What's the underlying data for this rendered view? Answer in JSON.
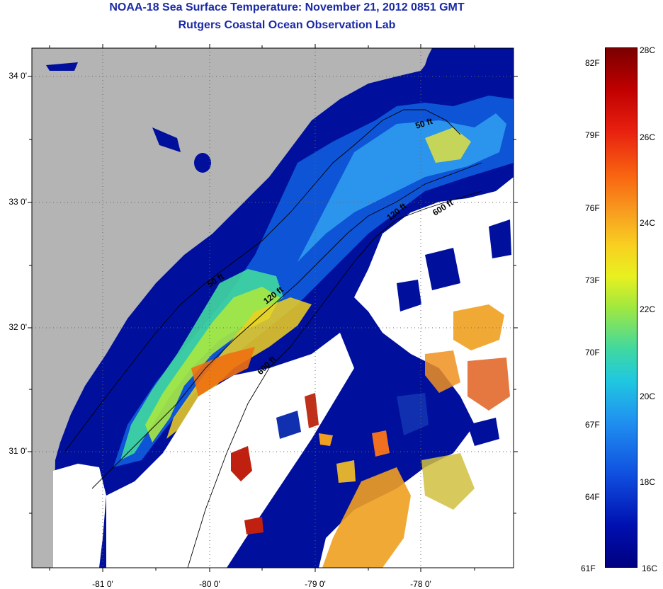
{
  "title": "NOAA-18 Sea Surface Temperature:  November 21, 2012 0851 GMT",
  "subtitle": "Rutgers Coastal Ocean Observation Lab",
  "map": {
    "lat_labels": [
      "34 0'",
      "33 0'",
      "32 0'",
      "31 0'"
    ],
    "lon_labels": [
      "-81 0'",
      "-80 0'",
      "-79 0'",
      "-78 0'"
    ],
    "contours": [
      {
        "label": "50 ft"
      },
      {
        "label": "50 ft"
      },
      {
        "label": "120 ft"
      },
      {
        "label": "120 ft"
      },
      {
        "label": "600 ft"
      },
      {
        "label": "600 ft"
      }
    ],
    "colors": {
      "land": "#b4b4b4",
      "cloud": "#ffffff",
      "cold": "#00109c",
      "warm": "#8a0000"
    }
  },
  "colorbar": {
    "fahrenheit": [
      "82F",
      "79F",
      "76F",
      "73F",
      "70F",
      "67F",
      "64F",
      "61F"
    ],
    "celsius": [
      "28C",
      "26C",
      "24C",
      "22C",
      "20C",
      "18C",
      "16C"
    ]
  }
}
